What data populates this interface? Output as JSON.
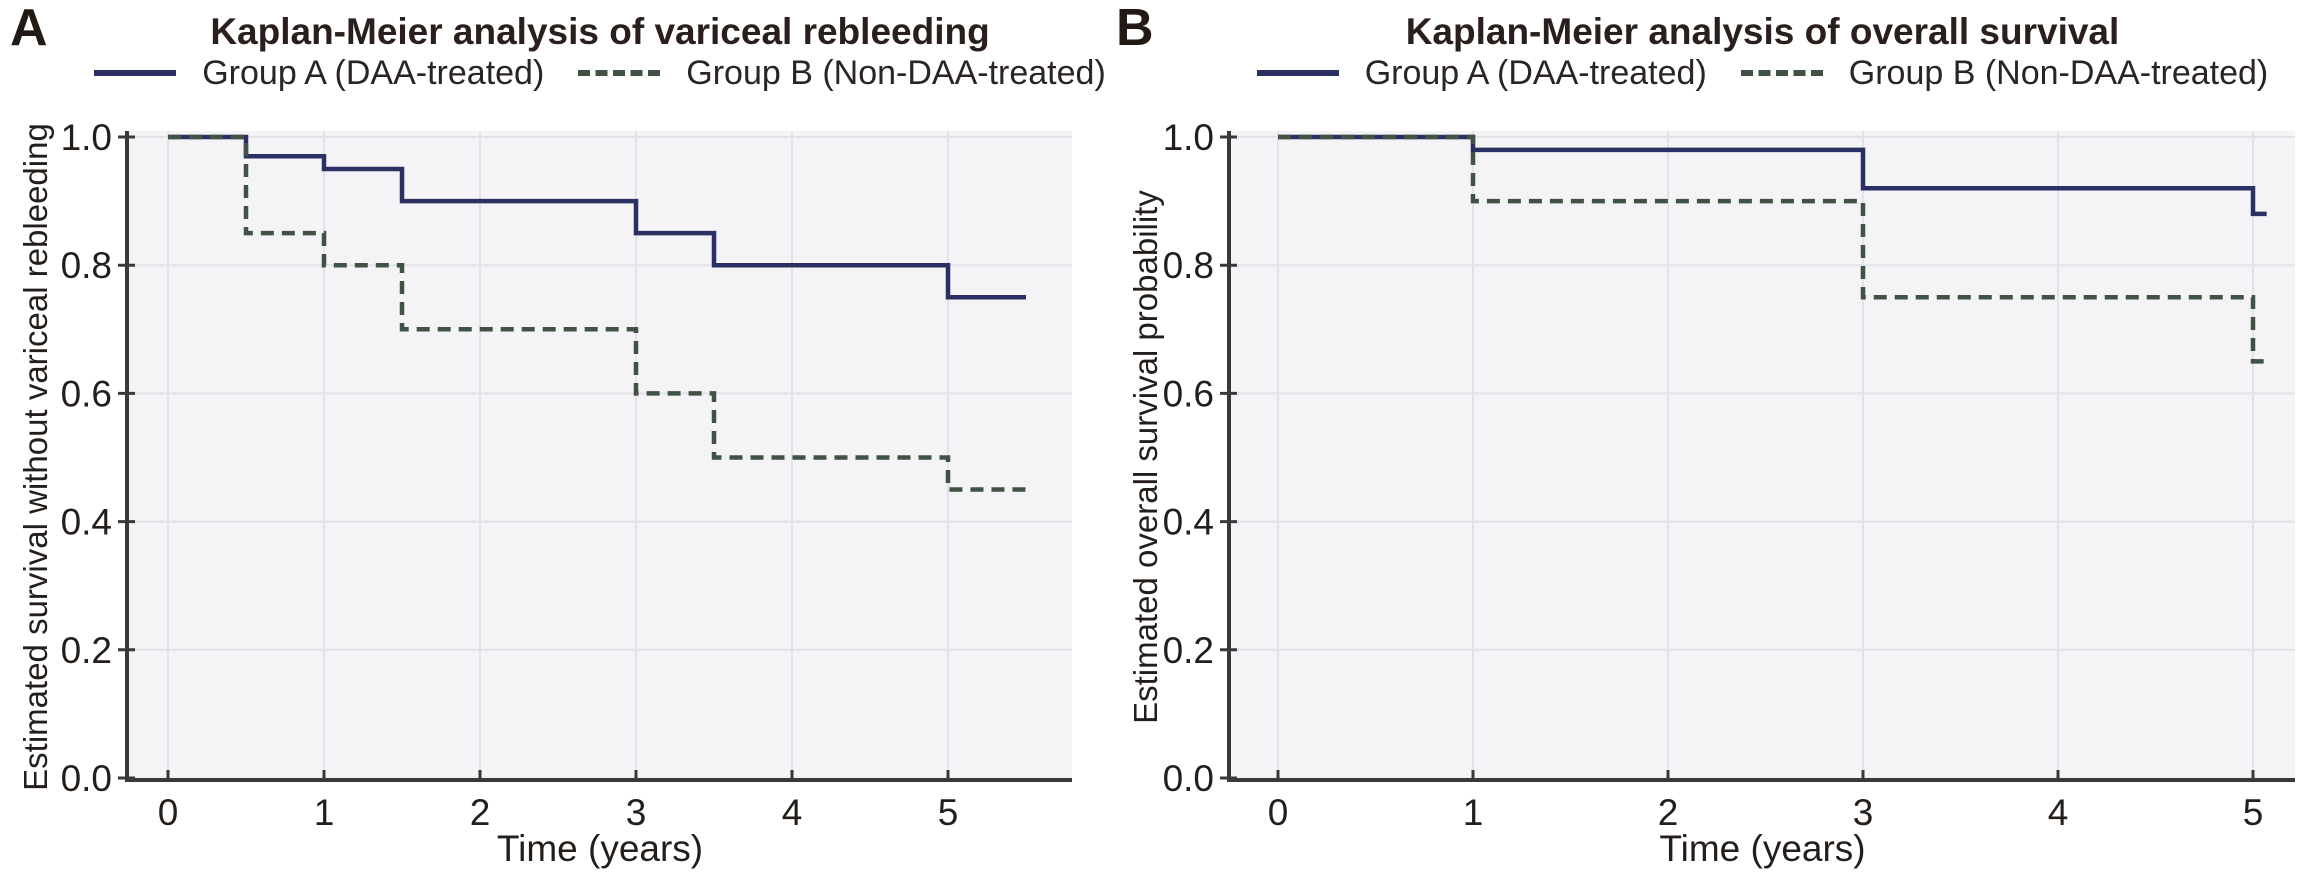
{
  "styles": {
    "plot_bg": "#f4f3f6",
    "grid_color": "#e3e1e9",
    "axis_color": "#3c3838",
    "tick_text_color": "#241e1b",
    "title_color": "#2a1f1c",
    "legend_text_color": "#2a2522",
    "panel_label_color": "#231a16",
    "group_a_color": "#2b3064",
    "group_b_color": "#405244"
  },
  "chart_data": [
    {
      "type": "line",
      "subtype": "kaplan-meier-step",
      "panel_label": "A",
      "title": "Kaplan-Meier analysis of variceal rebleeding",
      "xlabel": "Time (years)",
      "ylabel": "Estimated survival without variceal rebleeding",
      "xlim": [
        -0.26,
        5.8
      ],
      "ylim": [
        0.0,
        1.0
      ],
      "x_ticks": [
        "0",
        "1",
        "2",
        "3",
        "4",
        "5"
      ],
      "y_ticks": [
        "0.0",
        "0.2",
        "0.4",
        "0.6",
        "0.8",
        "1.0"
      ],
      "grid": true,
      "legend_position": "top-center",
      "series": [
        {
          "name": "Group A (DAA-treated)",
          "line_style": "solid",
          "color": "#2b3064",
          "steps": [
            [
              0,
              1.0
            ],
            [
              0.5,
              0.97
            ],
            [
              1.0,
              0.95
            ],
            [
              1.5,
              0.9
            ],
            [
              3.0,
              0.85
            ],
            [
              3.5,
              0.8
            ],
            [
              5.0,
              0.75
            ]
          ],
          "end_time": 5.5
        },
        {
          "name": "Group B (Non-DAA-treated)",
          "line_style": "dashed",
          "color": "#405244",
          "steps": [
            [
              0,
              1.0
            ],
            [
              0.5,
              0.85
            ],
            [
              1.0,
              0.8
            ],
            [
              1.5,
              0.7
            ],
            [
              3.0,
              0.6
            ],
            [
              3.5,
              0.5
            ],
            [
              5.0,
              0.45
            ]
          ],
          "end_time": 5.5
        }
      ]
    },
    {
      "type": "line",
      "subtype": "kaplan-meier-step",
      "panel_label": "B",
      "title": "Kaplan-Meier analysis of overall survival",
      "xlabel": "Time (years)",
      "ylabel": "Estimated overall survival probability",
      "xlim": [
        -0.25,
        5.2
      ],
      "ylim": [
        0.0,
        1.0
      ],
      "x_ticks": [
        "0",
        "1",
        "2",
        "3",
        "4",
        "5"
      ],
      "y_ticks": [
        "0.0",
        "0.2",
        "0.4",
        "0.6",
        "0.8",
        "1.0"
      ],
      "grid": true,
      "legend_position": "top-center",
      "series": [
        {
          "name": "Group A (DAA-treated)",
          "line_style": "solid",
          "color": "#2b3064",
          "steps": [
            [
              0,
              1.0
            ],
            [
              1.0,
              0.98
            ],
            [
              3.0,
              0.92
            ],
            [
              5.0,
              0.88
            ]
          ],
          "end_time": 5.07
        },
        {
          "name": "Group B (Non-DAA-treated)",
          "line_style": "dashed",
          "color": "#405244",
          "steps": [
            [
              0,
              1.0
            ],
            [
              1.0,
              0.9
            ],
            [
              3.0,
              0.75
            ],
            [
              5.0,
              0.65
            ]
          ],
          "end_time": 5.07
        }
      ]
    }
  ]
}
